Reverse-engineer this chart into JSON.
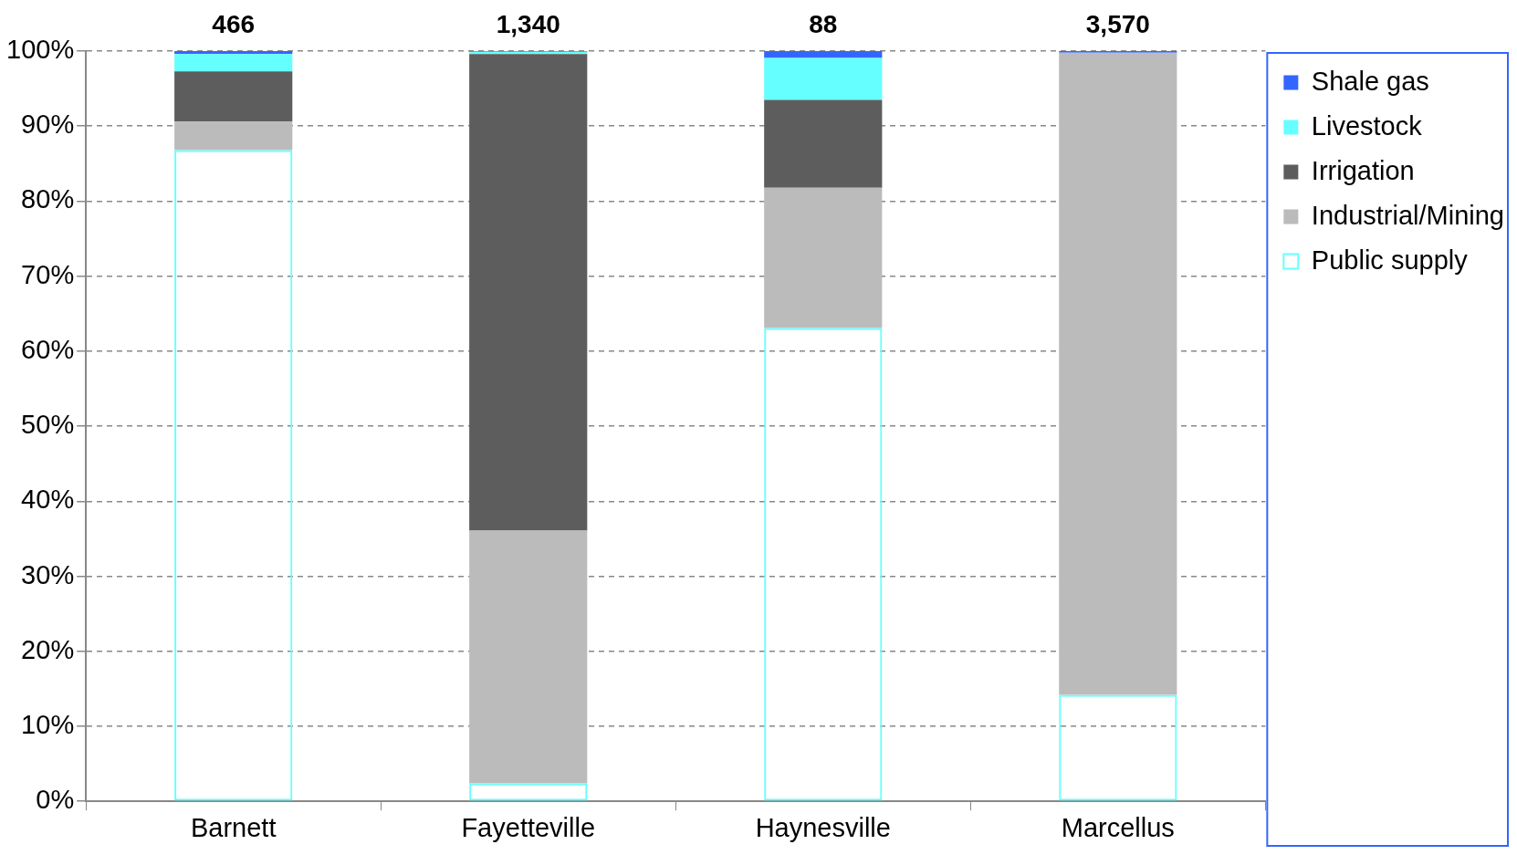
{
  "chart_data": {
    "type": "bar",
    "stacked": true,
    "categories": [
      "Barnett",
      "Fayetteville",
      "Haynesville",
      "Marcellus"
    ],
    "series": [
      {
        "name": "Public supply",
        "color": "#66ffff",
        "values": [
          86.8,
          2.4,
          63.1,
          14.2
        ]
      },
      {
        "name": "Industrial/Mining",
        "color": "#bbbbbb",
        "values": [
          3.8,
          33.7,
          18.7,
          85.6
        ]
      },
      {
        "name": "Irrigation",
        "color": "#5d5d5d",
        "values": [
          6.7,
          63.5,
          11.7,
          0
        ]
      },
      {
        "name": "Livestock",
        "color": "#66ffff",
        "values": [
          2.3,
          0.3,
          5.6,
          0
        ]
      },
      {
        "name": "Shale gas",
        "color": "#3366ff",
        "values": [
          0.4,
          0.1,
          0.9,
          0.2
        ]
      }
    ],
    "annotations": [
      {
        "text": "466",
        "x": "Barnett",
        "y": 100
      },
      {
        "text": "1,340",
        "x": "Fayetteville",
        "y": 100
      },
      {
        "text": "88",
        "x": "Haynesville",
        "y": 100
      },
      {
        "text": "3,570",
        "x": "Marcellus",
        "y": 100
      }
    ],
    "ylim": [
      0,
      100
    ],
    "yticks": [
      {
        "value": 0,
        "label": "0%"
      },
      {
        "value": 10,
        "label": "10%"
      },
      {
        "value": 20,
        "label": "20%"
      },
      {
        "value": 30,
        "label": "30%"
      },
      {
        "value": 40,
        "label": "40%"
      },
      {
        "value": 50,
        "label": "50%"
      },
      {
        "value": 60,
        "label": "60%"
      },
      {
        "value": 70,
        "label": "70%"
      },
      {
        "value": 80,
        "label": "80%"
      },
      {
        "value": 90,
        "label": "90%"
      },
      {
        "value": 100,
        "label": "100%"
      }
    ],
    "grid": "y",
    "legend": "right"
  }
}
